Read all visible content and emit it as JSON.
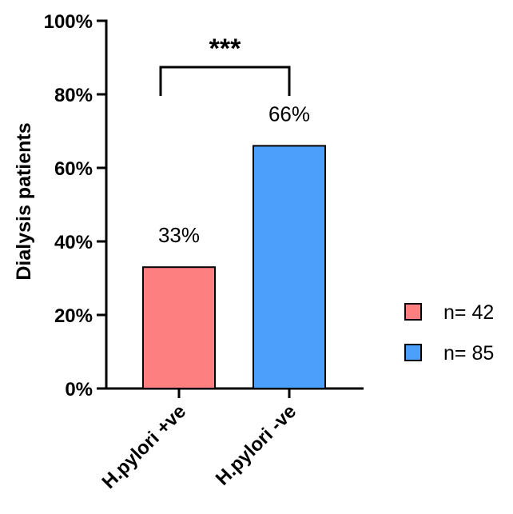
{
  "chart_data": {
    "type": "bar",
    "categories": [
      "H.pylori +ve",
      "H.pylori -ve"
    ],
    "values": [
      33,
      66
    ],
    "data_labels": [
      "33%",
      "66%"
    ],
    "colors": [
      "#fd7f7f",
      "#4d9ffc"
    ],
    "ylabel": "Dialysis patients",
    "ylim": [
      0,
      100
    ],
    "yticks": [
      0,
      20,
      40,
      60,
      80,
      100
    ],
    "ytick_labels": [
      "0%",
      "20%",
      "40%",
      "60%",
      "80%",
      "100%"
    ],
    "significance": "***",
    "legend": [
      {
        "label": "n= 42",
        "color": "#fd7f7f"
      },
      {
        "label": "n= 85",
        "color": "#4d9ffc"
      }
    ],
    "legend_position": "right",
    "grid": false
  }
}
